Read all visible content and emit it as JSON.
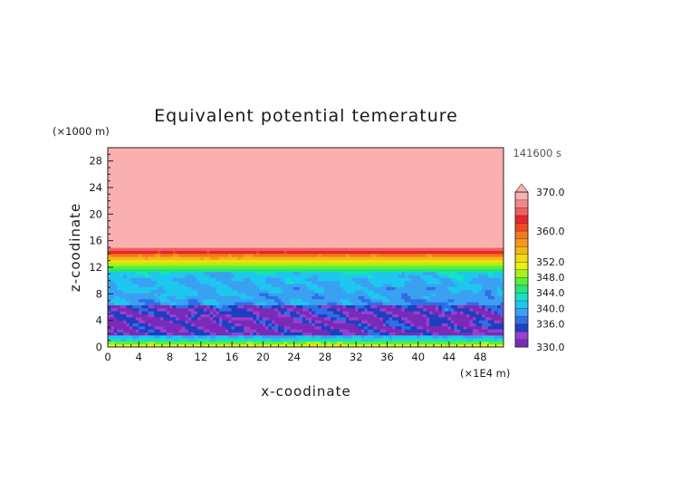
{
  "chart_data": {
    "type": "heatmap",
    "title": "Equivalent potential temerature",
    "xlabel": "x-coodinate",
    "ylabel": "z-coodinate",
    "x_unit": "(×1E4 m)",
    "y_unit": "(×1000 m)",
    "time_label": "141600 s",
    "xlim": [
      0,
      51
    ],
    "ylim": [
      0,
      30
    ],
    "x_ticks": [
      "0",
      "4",
      "8",
      "12",
      "16",
      "20",
      "24",
      "28",
      "32",
      "36",
      "40",
      "44",
      "48"
    ],
    "y_ticks": [
      "0",
      "4",
      "8",
      "12",
      "16",
      "20",
      "24",
      "28"
    ],
    "colorbar": {
      "levels": [
        330,
        332,
        334,
        336,
        338,
        340,
        342,
        344,
        346,
        348,
        350,
        352,
        354,
        356,
        358,
        360,
        362,
        364,
        366,
        368,
        370
      ],
      "labels": [
        "330.0",
        "336.0",
        "340.0",
        "344.0",
        "348.0",
        "352.0",
        "360.0",
        "370.0"
      ],
      "colors": [
        "#7a2ab8",
        "#9a3fd0",
        "#1f3fbf",
        "#2f6fe6",
        "#3aa0f2",
        "#1ec7f0",
        "#16e0c8",
        "#22e67a",
        "#5aee3a",
        "#a6f21a",
        "#e6f20e",
        "#f2dc0e",
        "#f4b816",
        "#f49a1a",
        "#f4781e",
        "#f04a22",
        "#e8262a",
        "#f06060",
        "#f48888",
        "#fbb0b0"
      ]
    },
    "layers": [
      {
        "z_range": [
          15,
          30
        ],
        "theta": "above 370"
      },
      {
        "z_range": [
          14,
          15
        ],
        "theta": "360-366"
      },
      {
        "z_range": [
          12.5,
          14
        ],
        "theta": "350-358"
      },
      {
        "z_range": [
          11.5,
          12.5
        ],
        "theta": "344-348"
      },
      {
        "z_range": [
          7,
          11.5
        ],
        "theta": "338-342"
      },
      {
        "z_range": [
          2,
          7
        ],
        "theta": "330-338"
      },
      {
        "z_range": [
          0,
          2
        ],
        "theta": "338-352"
      }
    ]
  }
}
